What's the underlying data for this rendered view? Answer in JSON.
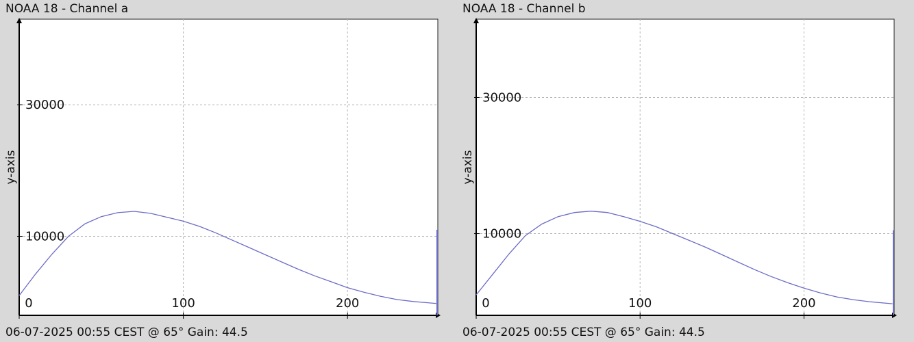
{
  "panels": [
    {
      "title": "NOAA 18 - Channel a",
      "footer": "06-07-2025 00:55 CEST @ 65° Gain: 44.5"
    },
    {
      "title": "NOAA 18 - Channel b",
      "footer": "06-07-2025 00:55 CEST @ 65° Gain: 44.5"
    }
  ],
  "chart_data": [
    {
      "type": "line",
      "title": "NOAA 18 - Channel a",
      "xlabel": "",
      "ylabel": "y-axis",
      "xlim": [
        0,
        255
      ],
      "ylim": [
        -2000,
        43000
      ],
      "x_ticks": [
        0,
        100,
        200
      ],
      "x_tick_labels": [
        "0",
        "100",
        "200"
      ],
      "y_ticks": [
        10000,
        30000
      ],
      "y_tick_labels": [
        "10000",
        "30000"
      ],
      "grid": true,
      "series": [
        {
          "color": "#6b6bc8",
          "x": [
            0,
            10,
            20,
            30,
            40,
            50,
            60,
            70,
            80,
            90,
            100,
            110,
            120,
            130,
            140,
            150,
            160,
            170,
            180,
            190,
            200,
            210,
            220,
            230,
            240,
            254
          ],
          "y": [
            1000,
            4300,
            7300,
            10000,
            11900,
            13000,
            13600,
            13800,
            13500,
            12900,
            12300,
            11500,
            10500,
            9400,
            8300,
            7200,
            6100,
            5000,
            4000,
            3100,
            2200,
            1500,
            900,
            400,
            100,
            -200
          ]
        }
      ],
      "end_spike": {
        "x": 255,
        "y": 11000
      }
    },
    {
      "type": "line",
      "title": "NOAA 18 - Channel b",
      "xlabel": "",
      "ylabel": "y-axis",
      "xlim": [
        0,
        255
      ],
      "ylim": [
        -2000,
        41500
      ],
      "x_ticks": [
        0,
        100,
        200
      ],
      "x_tick_labels": [
        "0",
        "100",
        "200"
      ],
      "y_ticks": [
        10000,
        30000
      ],
      "y_tick_labels": [
        "10000",
        "30000"
      ],
      "grid": true,
      "series": [
        {
          "color": "#6b6bc8",
          "x": [
            0,
            10,
            20,
            30,
            40,
            50,
            60,
            70,
            80,
            90,
            100,
            110,
            120,
            130,
            140,
            150,
            160,
            170,
            180,
            190,
            200,
            210,
            220,
            230,
            240,
            254
          ],
          "y": [
            1000,
            4000,
            7000,
            9700,
            11400,
            12500,
            13100,
            13300,
            13100,
            12500,
            11800,
            11000,
            10000,
            9000,
            8000,
            6900,
            5800,
            4700,
            3700,
            2800,
            2000,
            1300,
            700,
            300,
            0,
            -300
          ]
        }
      ],
      "end_spike": {
        "x": 255,
        "y": 10500
      }
    }
  ]
}
